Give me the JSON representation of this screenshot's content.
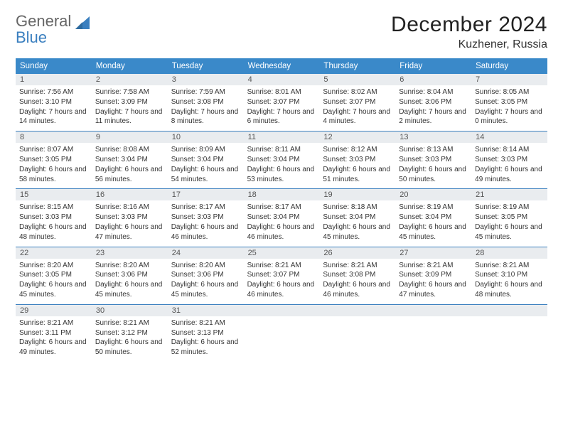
{
  "logo": {
    "word1": "General",
    "word2": "Blue"
  },
  "title": "December 2024",
  "location": "Kuzhener, Russia",
  "colors": {
    "header_bg": "#3a89c9",
    "num_bg": "#e9ecef",
    "row_border": "#3a7fbf",
    "logo_blue": "#3a7fbf"
  },
  "weekdays": [
    "Sunday",
    "Monday",
    "Tuesday",
    "Wednesday",
    "Thursday",
    "Friday",
    "Saturday"
  ],
  "weeks": [
    [
      {
        "n": "1",
        "sr": "7:56 AM",
        "ss": "3:10 PM",
        "dl": "7 hours and 14 minutes."
      },
      {
        "n": "2",
        "sr": "7:58 AM",
        "ss": "3:09 PM",
        "dl": "7 hours and 11 minutes."
      },
      {
        "n": "3",
        "sr": "7:59 AM",
        "ss": "3:08 PM",
        "dl": "7 hours and 8 minutes."
      },
      {
        "n": "4",
        "sr": "8:01 AM",
        "ss": "3:07 PM",
        "dl": "7 hours and 6 minutes."
      },
      {
        "n": "5",
        "sr": "8:02 AM",
        "ss": "3:07 PM",
        "dl": "7 hours and 4 minutes."
      },
      {
        "n": "6",
        "sr": "8:04 AM",
        "ss": "3:06 PM",
        "dl": "7 hours and 2 minutes."
      },
      {
        "n": "7",
        "sr": "8:05 AM",
        "ss": "3:05 PM",
        "dl": "7 hours and 0 minutes."
      }
    ],
    [
      {
        "n": "8",
        "sr": "8:07 AM",
        "ss": "3:05 PM",
        "dl": "6 hours and 58 minutes."
      },
      {
        "n": "9",
        "sr": "8:08 AM",
        "ss": "3:04 PM",
        "dl": "6 hours and 56 minutes."
      },
      {
        "n": "10",
        "sr": "8:09 AM",
        "ss": "3:04 PM",
        "dl": "6 hours and 54 minutes."
      },
      {
        "n": "11",
        "sr": "8:11 AM",
        "ss": "3:04 PM",
        "dl": "6 hours and 53 minutes."
      },
      {
        "n": "12",
        "sr": "8:12 AM",
        "ss": "3:03 PM",
        "dl": "6 hours and 51 minutes."
      },
      {
        "n": "13",
        "sr": "8:13 AM",
        "ss": "3:03 PM",
        "dl": "6 hours and 50 minutes."
      },
      {
        "n": "14",
        "sr": "8:14 AM",
        "ss": "3:03 PM",
        "dl": "6 hours and 49 minutes."
      }
    ],
    [
      {
        "n": "15",
        "sr": "8:15 AM",
        "ss": "3:03 PM",
        "dl": "6 hours and 48 minutes."
      },
      {
        "n": "16",
        "sr": "8:16 AM",
        "ss": "3:03 PM",
        "dl": "6 hours and 47 minutes."
      },
      {
        "n": "17",
        "sr": "8:17 AM",
        "ss": "3:03 PM",
        "dl": "6 hours and 46 minutes."
      },
      {
        "n": "18",
        "sr": "8:17 AM",
        "ss": "3:04 PM",
        "dl": "6 hours and 46 minutes."
      },
      {
        "n": "19",
        "sr": "8:18 AM",
        "ss": "3:04 PM",
        "dl": "6 hours and 45 minutes."
      },
      {
        "n": "20",
        "sr": "8:19 AM",
        "ss": "3:04 PM",
        "dl": "6 hours and 45 minutes."
      },
      {
        "n": "21",
        "sr": "8:19 AM",
        "ss": "3:05 PM",
        "dl": "6 hours and 45 minutes."
      }
    ],
    [
      {
        "n": "22",
        "sr": "8:20 AM",
        "ss": "3:05 PM",
        "dl": "6 hours and 45 minutes."
      },
      {
        "n": "23",
        "sr": "8:20 AM",
        "ss": "3:06 PM",
        "dl": "6 hours and 45 minutes."
      },
      {
        "n": "24",
        "sr": "8:20 AM",
        "ss": "3:06 PM",
        "dl": "6 hours and 45 minutes."
      },
      {
        "n": "25",
        "sr": "8:21 AM",
        "ss": "3:07 PM",
        "dl": "6 hours and 46 minutes."
      },
      {
        "n": "26",
        "sr": "8:21 AM",
        "ss": "3:08 PM",
        "dl": "6 hours and 46 minutes."
      },
      {
        "n": "27",
        "sr": "8:21 AM",
        "ss": "3:09 PM",
        "dl": "6 hours and 47 minutes."
      },
      {
        "n": "28",
        "sr": "8:21 AM",
        "ss": "3:10 PM",
        "dl": "6 hours and 48 minutes."
      }
    ],
    [
      {
        "n": "29",
        "sr": "8:21 AM",
        "ss": "3:11 PM",
        "dl": "6 hours and 49 minutes."
      },
      {
        "n": "30",
        "sr": "8:21 AM",
        "ss": "3:12 PM",
        "dl": "6 hours and 50 minutes."
      },
      {
        "n": "31",
        "sr": "8:21 AM",
        "ss": "3:13 PM",
        "dl": "6 hours and 52 minutes."
      },
      {
        "n": "",
        "sr": "",
        "ss": "",
        "dl": ""
      },
      {
        "n": "",
        "sr": "",
        "ss": "",
        "dl": ""
      },
      {
        "n": "",
        "sr": "",
        "ss": "",
        "dl": ""
      },
      {
        "n": "",
        "sr": "",
        "ss": "",
        "dl": ""
      }
    ]
  ],
  "labels": {
    "sunrise": "Sunrise:",
    "sunset": "Sunset:",
    "daylight": "Daylight:"
  }
}
